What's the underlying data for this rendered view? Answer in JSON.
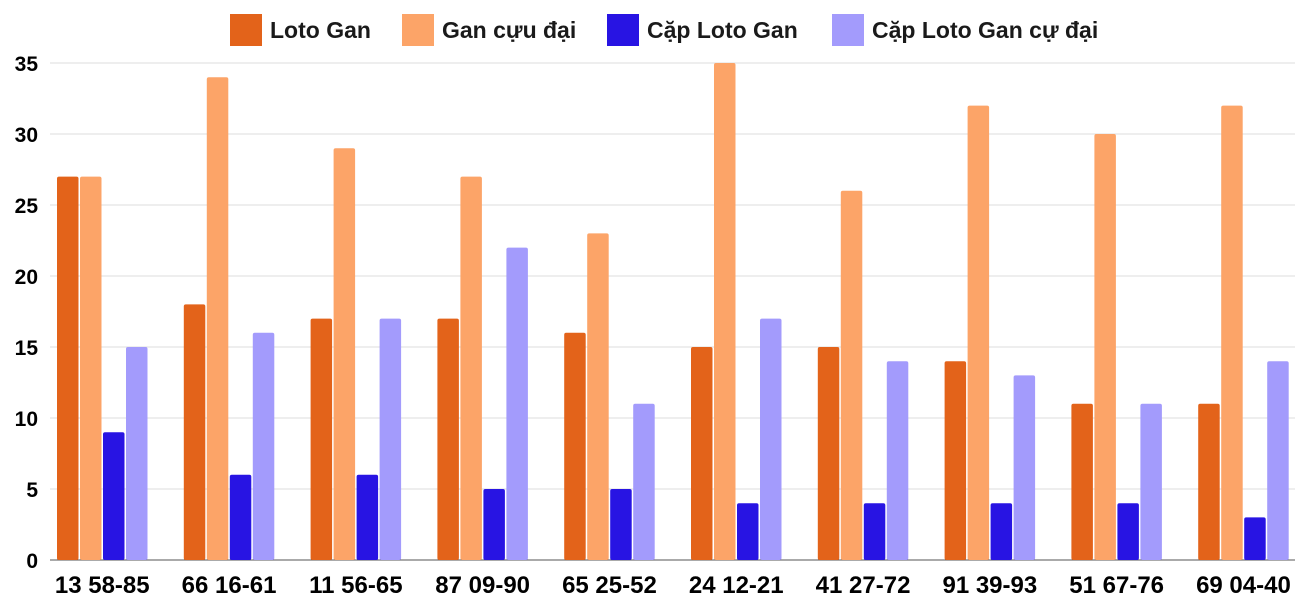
{
  "chart_data": {
    "type": "bar",
    "title": "",
    "xlabel": "",
    "ylabel": "",
    "ylim": [
      0,
      35
    ],
    "yticks": [
      0,
      5,
      10,
      15,
      20,
      25,
      30,
      35
    ],
    "grid": true,
    "legend_position": "top-center",
    "categories": [
      "13 58-85",
      "66 16-61",
      "11 56-65",
      "87 09-90",
      "65 25-52",
      "24 12-21",
      "41 27-72",
      "91 39-93",
      "51 67-76",
      "69 04-40"
    ],
    "series": [
      {
        "name": "Loto Gan",
        "color": "#e3631a",
        "values": [
          27,
          18,
          17,
          17,
          16,
          15,
          15,
          14,
          11,
          11
        ]
      },
      {
        "name": "Gan cựu đại",
        "color": "#fca468",
        "values": [
          27,
          34,
          29,
          27,
          23,
          35,
          26,
          32,
          30,
          32
        ]
      },
      {
        "name": "Cặp Loto Gan",
        "color": "#2814e3",
        "values": [
          9,
          6,
          6,
          5,
          5,
          4,
          4,
          4,
          4,
          3
        ]
      },
      {
        "name": "Cặp Loto Gan cự đại",
        "color": "#a39bfc",
        "values": [
          15,
          16,
          17,
          22,
          11,
          17,
          14,
          13,
          11,
          14
        ]
      }
    ]
  }
}
